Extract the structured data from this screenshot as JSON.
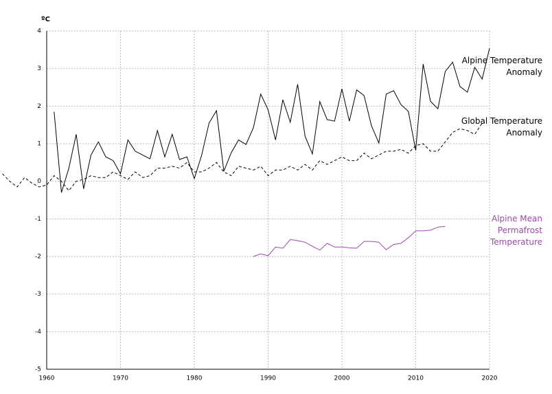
{
  "chart_data": {
    "type": "line",
    "y_label": "ºC",
    "xlim": [
      1960,
      2020
    ],
    "xticks": [
      1960,
      1970,
      1980,
      1990,
      2000,
      2010,
      2020
    ],
    "ylim": [
      -5,
      4
    ],
    "yticks": [
      -5,
      -4,
      -3,
      -2,
      -1,
      0,
      1,
      2,
      3,
      4
    ],
    "grid": true,
    "series": [
      {
        "name": "Alpine Temperature Anomaly",
        "color": "#000000",
        "style": "solid",
        "x": [
          1961,
          1962,
          1963,
          1964,
          1965,
          1966,
          1967,
          1968,
          1969,
          1970,
          1971,
          1972,
          1973,
          1974,
          1975,
          1976,
          1977,
          1978,
          1979,
          1980,
          1981,
          1982,
          1983,
          1984,
          1985,
          1986,
          1987,
          1988,
          1989,
          1990,
          1991,
          1992,
          1993,
          1994,
          1995,
          1996,
          1997,
          1998,
          1999,
          2000,
          2001,
          2002,
          2003,
          2004,
          2005,
          2006,
          2007,
          2008,
          2009,
          2010,
          2011,
          2012,
          2013,
          2014,
          2015,
          2016,
          2017,
          2018,
          2019,
          2020
        ],
        "values": [
          1.85,
          -0.3,
          0.35,
          1.25,
          -0.2,
          0.7,
          1.05,
          0.65,
          0.55,
          0.2,
          1.1,
          0.8,
          0.7,
          0.6,
          1.35,
          0.65,
          1.25,
          0.58,
          0.65,
          0.07,
          0.7,
          1.55,
          1.88,
          0.27,
          0.76,
          1.1,
          0.98,
          1.42,
          2.32,
          1.9,
          1.1,
          2.17,
          1.57,
          2.58,
          1.2,
          0.73,
          2.12,
          1.64,
          1.6,
          2.46,
          1.6,
          2.43,
          2.28,
          1.48,
          1.02,
          2.32,
          2.41,
          2.04,
          1.86,
          0.82,
          3.12,
          2.13,
          1.93,
          2.92,
          3.17,
          2.52,
          2.37,
          3.03,
          2.72,
          3.54
        ]
      },
      {
        "name": "Global Temperature Anomaly",
        "color": "#000000",
        "style": "dashed",
        "x": [
          1954,
          1955,
          1956,
          1957,
          1958,
          1959,
          1960,
          1961,
          1962,
          1963,
          1964,
          1965,
          1966,
          1967,
          1968,
          1969,
          1970,
          1971,
          1972,
          1973,
          1974,
          1975,
          1976,
          1977,
          1978,
          1979,
          1980,
          1981,
          1982,
          1983,
          1984,
          1985,
          1986,
          1987,
          1988,
          1989,
          1990,
          1991,
          1992,
          1993,
          1994,
          1995,
          1996,
          1997,
          1998,
          1999,
          2000,
          2001,
          2002,
          2003,
          2004,
          2005,
          2006,
          2007,
          2008,
          2009,
          2010,
          2011,
          2012,
          2013,
          2014,
          2015,
          2016,
          2017,
          2018,
          2019
        ],
        "values": [
          0.2,
          0.0,
          -0.15,
          0.1,
          -0.05,
          -0.15,
          -0.1,
          0.15,
          0.0,
          -0.25,
          0.0,
          0.05,
          0.15,
          0.1,
          0.1,
          0.25,
          0.15,
          0.05,
          0.25,
          0.1,
          0.15,
          0.35,
          0.35,
          0.4,
          0.35,
          0.5,
          0.25,
          0.25,
          0.35,
          0.5,
          0.25,
          0.15,
          0.4,
          0.35,
          0.3,
          0.4,
          0.15,
          0.3,
          0.3,
          0.4,
          0.3,
          0.45,
          0.3,
          0.55,
          0.45,
          0.55,
          0.65,
          0.55,
          0.55,
          0.75,
          0.6,
          0.7,
          0.8,
          0.8,
          0.85,
          0.75,
          0.95,
          1.0,
          0.8,
          0.8,
          1.05,
          1.3,
          1.4,
          1.35,
          1.25,
          1.55
        ]
      },
      {
        "name": "Alpine Mean Permafrost Temperature",
        "color": "#9b4aa8",
        "style": "solid",
        "x": [
          1988,
          1989,
          1990,
          1991,
          1992,
          1993,
          1994,
          1995,
          1996,
          1997,
          1998,
          1999,
          2000,
          2001,
          2002,
          2003,
          2004,
          2005,
          2006,
          2007,
          2008,
          2009,
          2010,
          2011,
          2012,
          2013,
          2014
        ],
        "values": [
          -2.0,
          -1.93,
          -1.98,
          -1.75,
          -1.78,
          -1.55,
          -1.58,
          -1.62,
          -1.73,
          -1.83,
          -1.65,
          -1.75,
          -1.75,
          -1.77,
          -1.78,
          -1.6,
          -1.6,
          -1.62,
          -1.82,
          -1.68,
          -1.65,
          -1.5,
          -1.32,
          -1.32,
          -1.3,
          -1.22,
          -1.2
        ]
      }
    ]
  }
}
